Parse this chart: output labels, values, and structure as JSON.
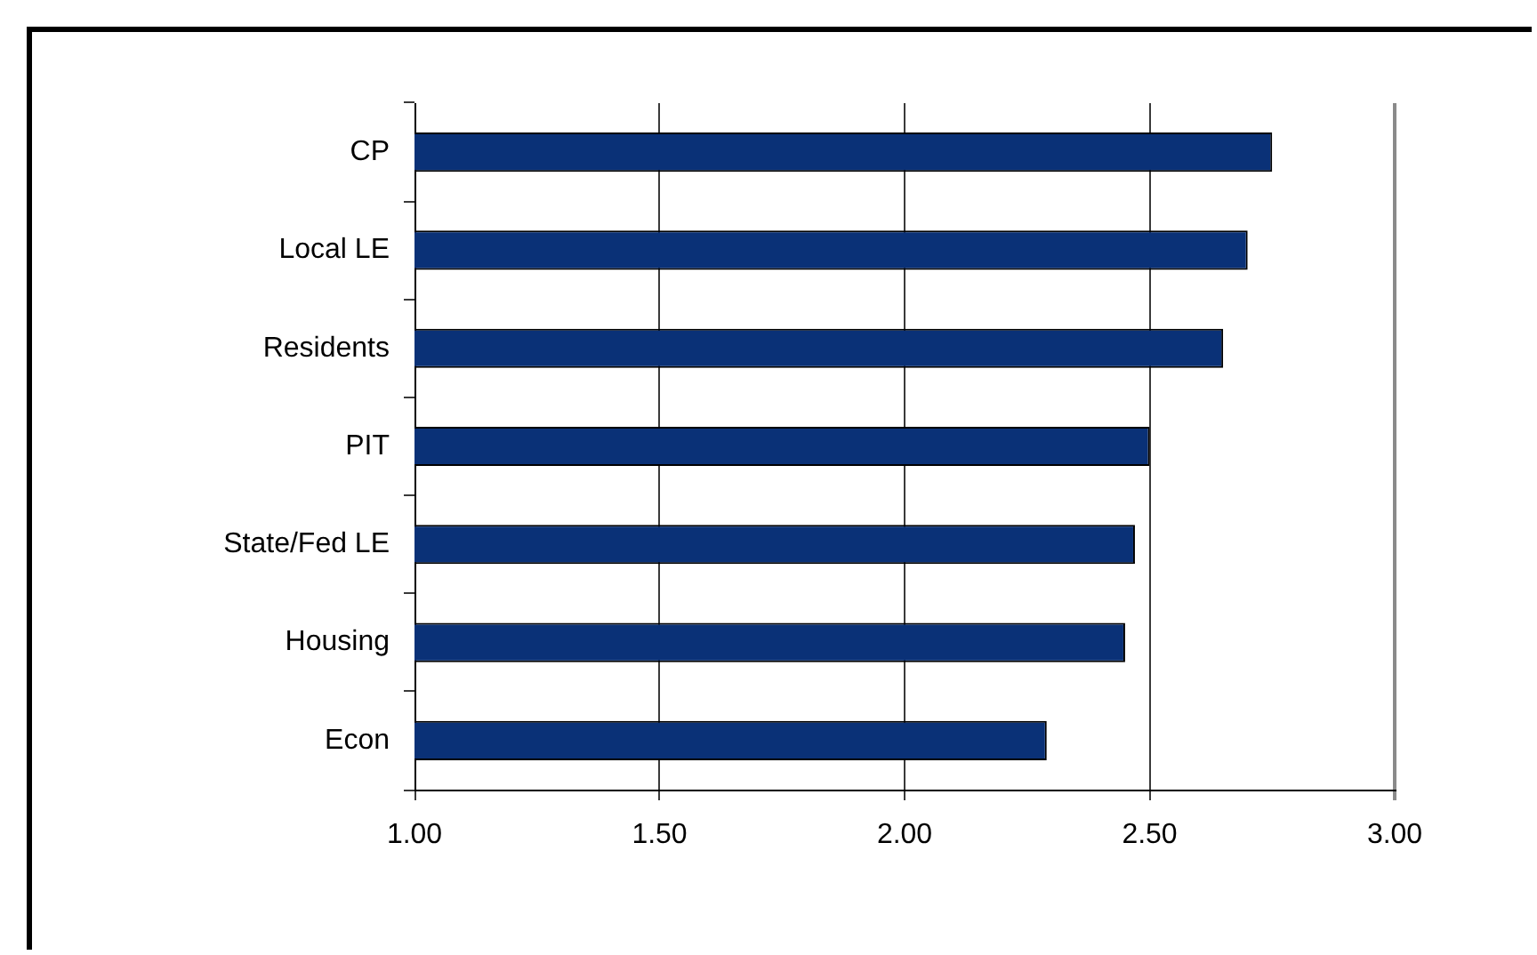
{
  "chart_data": {
    "type": "bar",
    "orientation": "horizontal",
    "categories": [
      "CP",
      "Local LE",
      "Residents",
      "PIT",
      "State/Fed LE",
      "Housing",
      "Econ"
    ],
    "values": [
      2.75,
      2.7,
      2.65,
      2.5,
      2.47,
      2.45,
      2.29
    ],
    "color": "#0a3177",
    "xlim": [
      1,
      3
    ],
    "xticks": [
      {
        "value": 1,
        "label": "1.00"
      },
      {
        "value": 1.5,
        "label": "1.50"
      },
      {
        "value": 2,
        "label": "2.00"
      },
      {
        "value": 2.5,
        "label": "2.50"
      },
      {
        "value": 3,
        "label": "3.00"
      }
    ],
    "grid": "x",
    "legend": false
  }
}
